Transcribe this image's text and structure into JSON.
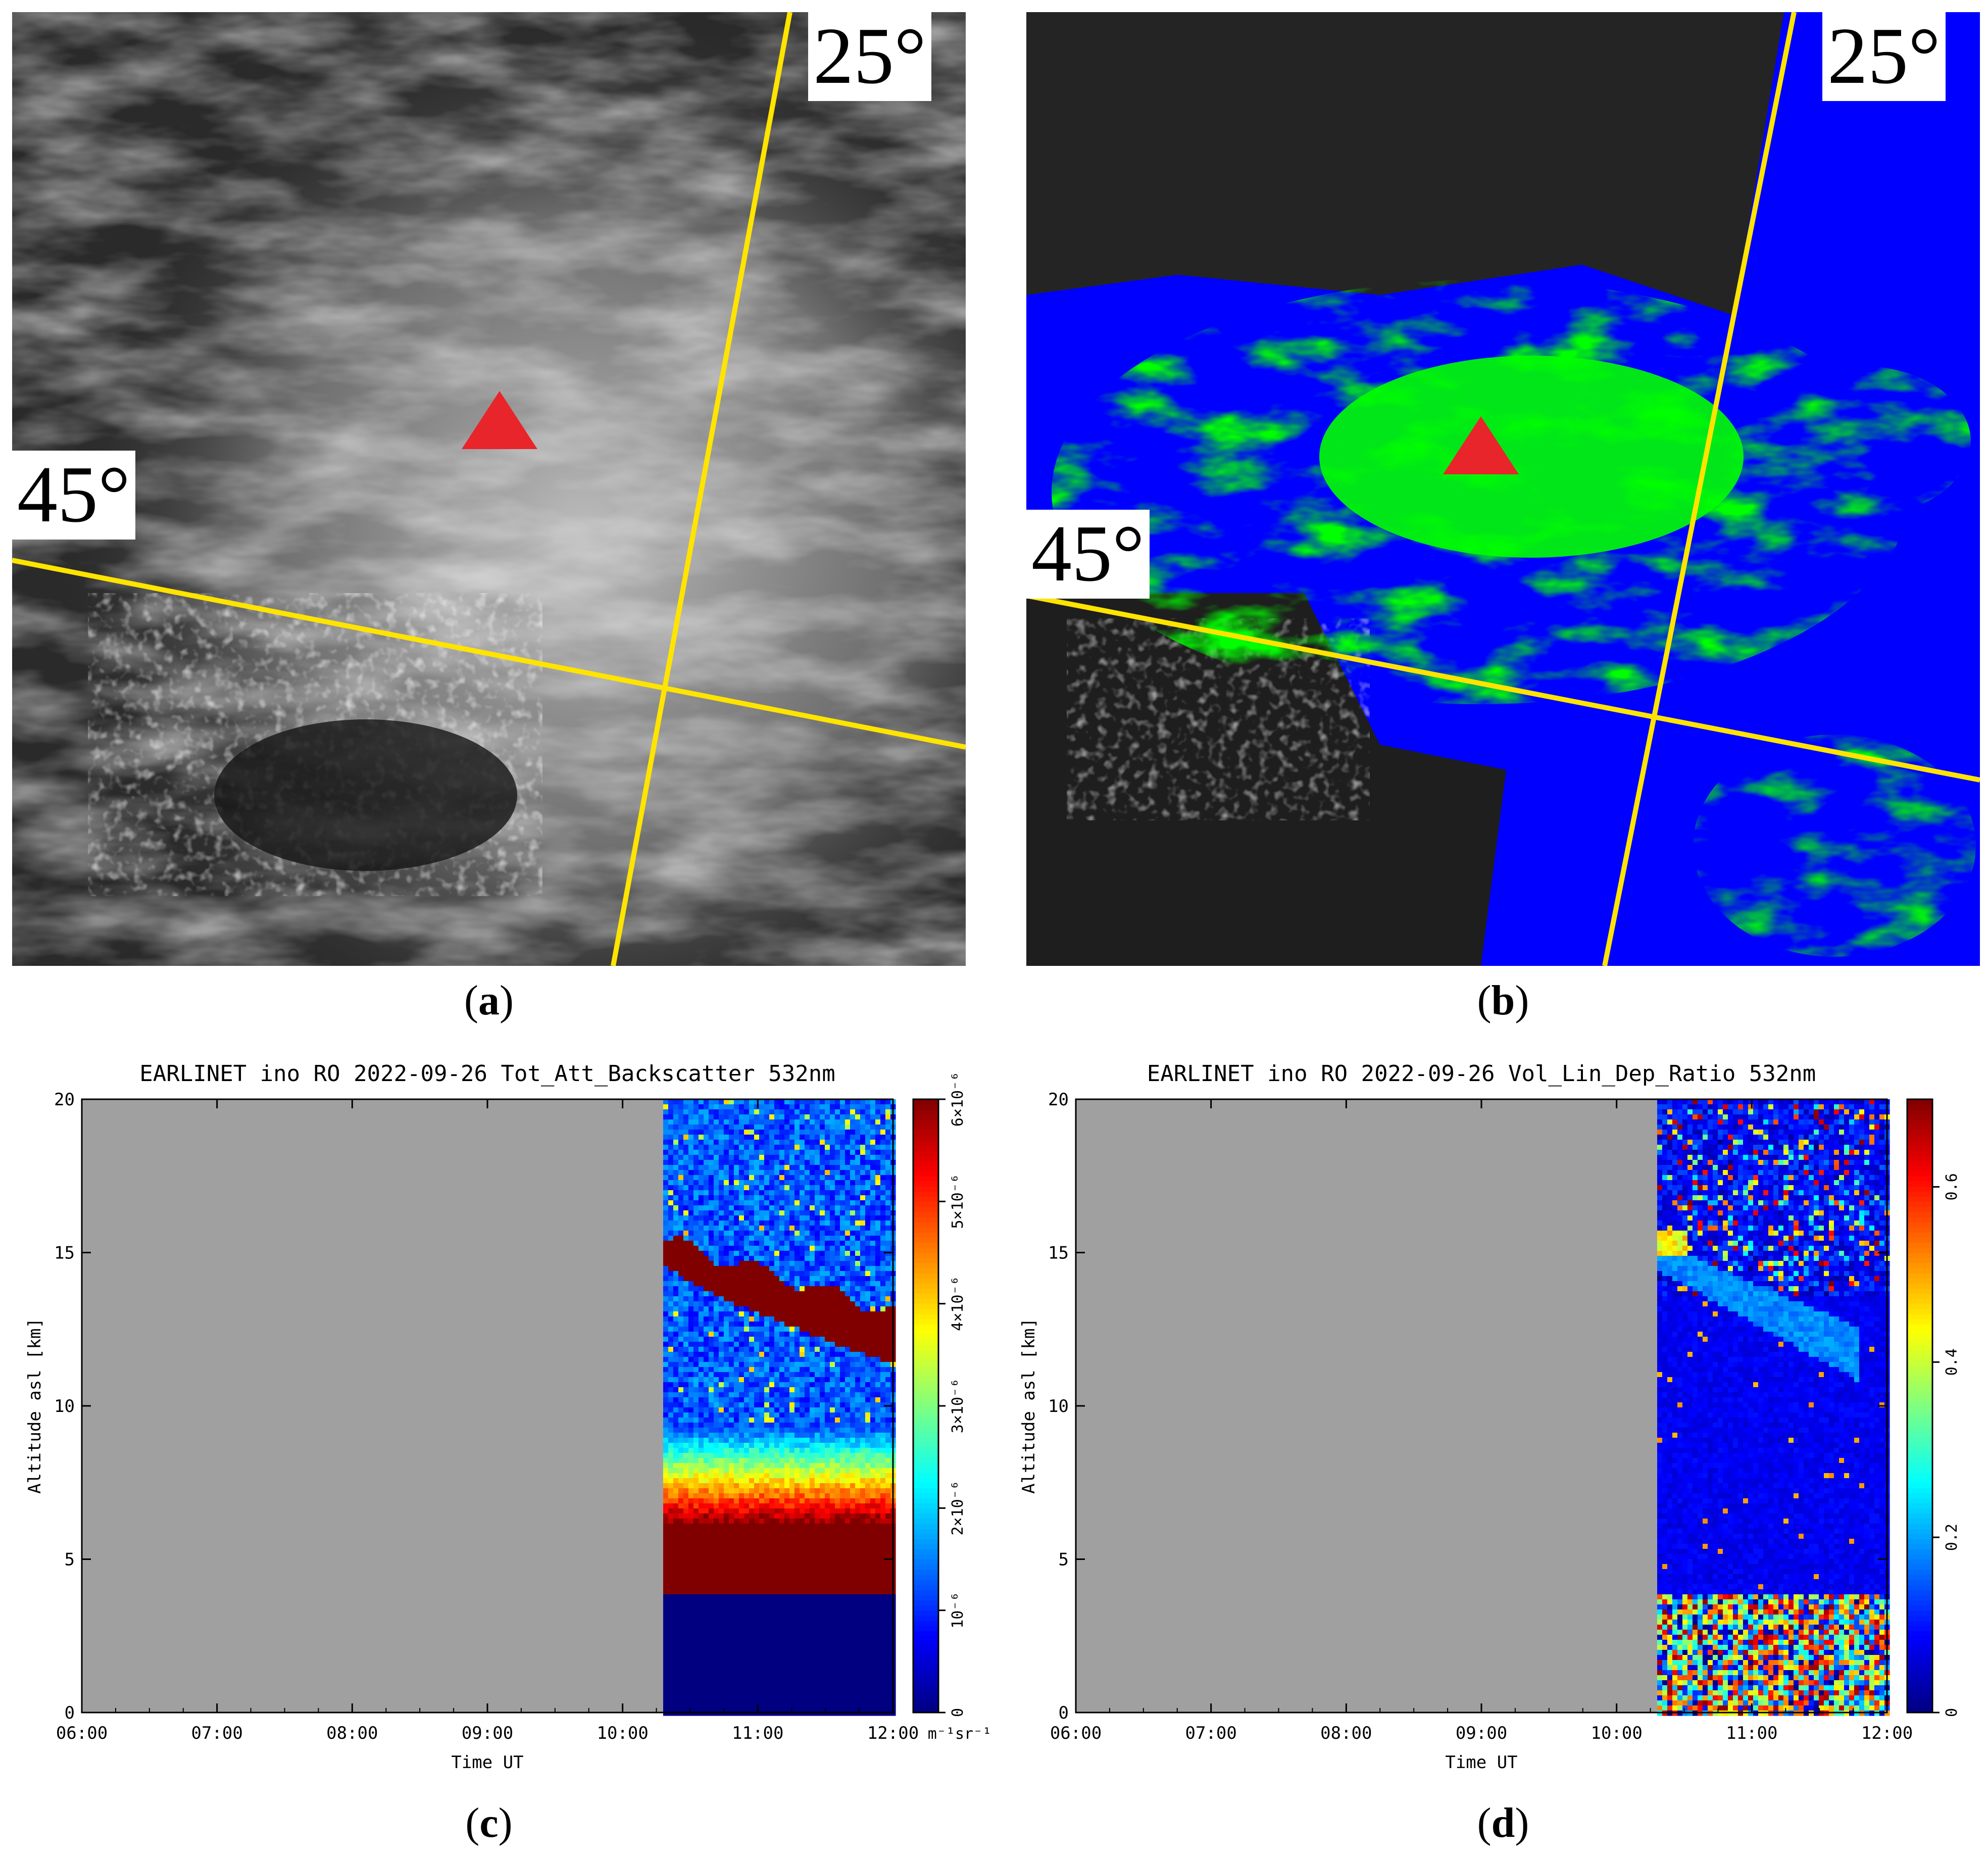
{
  "panels": {
    "a": {
      "caption_open": "(",
      "caption_letter": "a",
      "caption_close": ")",
      "lat_label": "45°",
      "lon_label": "25°",
      "marker_color": "#e8252a",
      "grid_color": "#ffe400"
    },
    "b": {
      "caption_open": "(",
      "caption_letter": "b",
      "caption_close": ")",
      "lat_label": "45°",
      "lon_label": "25°",
      "classes": {
        "background": "#0000ff",
        "ash": "#00ff00"
      },
      "marker_color": "#e8252a",
      "grid_color": "#ffe400"
    },
    "c": {
      "caption_open": "(",
      "caption_letter": "c",
      "caption_close": ")"
    },
    "d": {
      "caption_open": "(",
      "caption_letter": "d",
      "caption_close": ")"
    }
  },
  "chart_data": [
    {
      "id": "c",
      "type": "heatmap",
      "title": "EARLINET ino RO 2022-09-26 Tot_Att_Backscatter 532nm",
      "xlabel": "Time UT",
      "ylabel": "Altitude asl [km]",
      "x_ticks": [
        "06:00",
        "07:00",
        "08:00",
        "09:00",
        "10:00",
        "11:00",
        "12:00"
      ],
      "x_range_hours": [
        6,
        12
      ],
      "y_ticks": [
        "0",
        "5",
        "10",
        "15",
        "20"
      ],
      "ylim": [
        0,
        20
      ],
      "data_start_hour": 10.3,
      "no_data_color": "#a0a0a0",
      "colorbar": {
        "range": [
          0,
          6e-06
        ],
        "tick_values": [
          0,
          1e-06,
          2e-06,
          3e-06,
          4e-06,
          5e-06,
          6e-06
        ],
        "ticks": [
          "0",
          "10⁻⁶",
          "2×10⁻⁶",
          "3×10⁻⁶",
          "4×10⁻⁶",
          "5×10⁻⁶",
          "6×10⁻⁶"
        ],
        "unit": "m⁻¹sr⁻¹"
      },
      "features": {
        "saturated_layer_km": [
          3.8,
          6.2
        ],
        "gradient_top_km": 9.5,
        "cirrus_top_km": [
          15.4,
          13.0
        ],
        "cirrus_bottom_km": [
          14.6,
          11.3
        ],
        "below_overlap_km": 3.8
      }
    },
    {
      "id": "d",
      "type": "heatmap",
      "title": "EARLINET ino RO 2022-09-26 Vol_Lin_Dep_Ratio 532nm",
      "xlabel": "Time UT",
      "ylabel": "Altitude asl [km]",
      "x_ticks": [
        "06:00",
        "07:00",
        "08:00",
        "09:00",
        "10:00",
        "11:00",
        "12:00"
      ],
      "x_range_hours": [
        6,
        12
      ],
      "y_ticks": [
        "0",
        "5",
        "10",
        "15",
        "20"
      ],
      "ylim": [
        0,
        20
      ],
      "data_start_hour": 10.3,
      "no_data_color": "#a0a0a0",
      "colorbar": {
        "range": [
          0,
          0.7
        ],
        "tick_values": [
          0,
          0.2,
          0.4,
          0.6
        ],
        "ticks": [
          "0",
          "0.2",
          "0.4",
          "0.6"
        ],
        "unit": ""
      },
      "features": {
        "noise_top_above_km": 13.5,
        "plume_start_km": 15.3,
        "low_noise_below_km": 3.8
      }
    }
  ]
}
